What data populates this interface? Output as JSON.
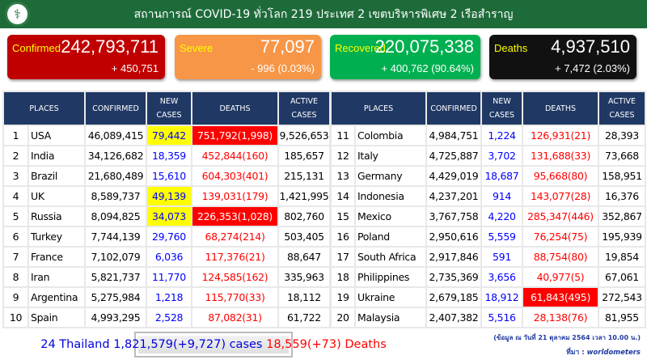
{
  "header": {
    "title": "สถานการณ์ COVID-19 ทั่วโลก 219 ประเทศ 2 เขตบริหารพิเศษ 2 เรือสำราญ",
    "logo": "department-logo"
  },
  "cards": {
    "confirmed": {
      "label": "Confirmed",
      "value": "242,793,711",
      "change": "+ 450,751",
      "color": "#c00000"
    },
    "severe": {
      "label": "Severe",
      "value": "77,097",
      "change": "- 996 (0.03%)",
      "color": "#f79646"
    },
    "recovered": {
      "label": "Recovered",
      "value": "220,075,338",
      "change": "+ 400,762 (90.64%)",
      "color": "#00b050"
    },
    "deaths": {
      "label": "Deaths",
      "value": "4,937,510",
      "change": "+ 7,472 (2.03%)",
      "color": "#111111"
    }
  },
  "table": {
    "headers": {
      "places": "PLACES",
      "confirmed": "CONFIRMED",
      "new_cases": "NEW CASES",
      "deaths": "DEATHS",
      "active_cases": "ACTIVE CASES"
    },
    "rows": [
      {
        "rank": "1",
        "place": "USA",
        "confirmed": "46,089,415",
        "new": "79,442",
        "deaths": "751,792(1,998)",
        "active": "9,526,653",
        "new_highlight": true,
        "deaths_highlight": true
      },
      {
        "rank": "2",
        "place": "India",
        "confirmed": "34,126,682",
        "new": "18,359",
        "deaths": "452,844(160)",
        "active": "185,657"
      },
      {
        "rank": "3",
        "place": "Brazil",
        "confirmed": "21,680,489",
        "new": "15,610",
        "deaths": "604,303(401)",
        "active": "215,131"
      },
      {
        "rank": "4",
        "place": "UK",
        "confirmed": "8,589,737",
        "new": "49,139",
        "deaths": "139,031(179)",
        "active": "1,421,995",
        "new_highlight": true
      },
      {
        "rank": "5",
        "place": "Russia",
        "confirmed": "8,094,825",
        "new": "34,073",
        "deaths": "226,353(1,028)",
        "active": "802,760",
        "new_highlight": true,
        "deaths_highlight": true
      },
      {
        "rank": "6",
        "place": "Turkey",
        "confirmed": "7,744,139",
        "new": "29,760",
        "deaths": "68,274(214)",
        "active": "503,405"
      },
      {
        "rank": "7",
        "place": "France",
        "confirmed": "7,102,079",
        "new": "6,036",
        "deaths": "117,376(21)",
        "active": "88,647"
      },
      {
        "rank": "8",
        "place": "Iran",
        "confirmed": "5,821,737",
        "new": "11,770",
        "deaths": "124,585(162)",
        "active": "335,963"
      },
      {
        "rank": "9",
        "place": "Argentina",
        "confirmed": "5,275,984",
        "new": "1,218",
        "deaths": "115,770(33)",
        "active": "18,112"
      },
      {
        "rank": "10",
        "place": "Spain",
        "confirmed": "4,993,295",
        "new": "2,528",
        "deaths": "87,082(31)",
        "active": "61,722"
      },
      {
        "rank": "11",
        "place": "Colombia",
        "confirmed": "4,984,751",
        "new": "1,224",
        "deaths": "126,931(21)",
        "active": "28,393"
      },
      {
        "rank": "12",
        "place": "Italy",
        "confirmed": "4,725,887",
        "new": "3,702",
        "deaths": "131,688(33)",
        "active": "73,668"
      },
      {
        "rank": "13",
        "place": "Germany",
        "confirmed": "4,429,019",
        "new": "18,687",
        "deaths": "95,668(80)",
        "active": "158,951"
      },
      {
        "rank": "14",
        "place": "Indonesia",
        "confirmed": "4,237,201",
        "new": "914",
        "deaths": "143,077(28)",
        "active": "16,376"
      },
      {
        "rank": "15",
        "place": "Mexico",
        "confirmed": "3,767,758",
        "new": "4,220",
        "deaths": "285,347(446)",
        "active": "352,867"
      },
      {
        "rank": "16",
        "place": "Poland",
        "confirmed": "2,950,616",
        "new": "5,559",
        "deaths": "76,254(75)",
        "active": "195,939"
      },
      {
        "rank": "17",
        "place": "South Africa",
        "confirmed": "2,917,846",
        "new": "591",
        "deaths": "88,754(80)",
        "active": "19,854"
      },
      {
        "rank": "18",
        "place": "Philippines",
        "confirmed": "2,735,369",
        "new": "3,656",
        "deaths": "40,977(5)",
        "active": "67,061"
      },
      {
        "rank": "19",
        "place": "Ukraine",
        "confirmed": "2,679,185",
        "new": "18,912",
        "deaths": "61,843(495)",
        "active": "272,543",
        "deaths_highlight": true
      },
      {
        "rank": "20",
        "place": "Malaysia",
        "confirmed": "2,407,382",
        "new": "5,516",
        "deaths": "28,138(76)",
        "active": "81,955"
      }
    ]
  },
  "thailand": {
    "rank_name": "24 Thailand",
    "cases": "1,821,579(+9,727) cases",
    "deaths": "18,559(+73) Deaths"
  },
  "footer": {
    "date_note": "(ข้อมูล ณ วันที่ 21 ตุลาคม 2564 เวลา 10.00 น.)",
    "source_label": "ที่มา :",
    "source": "worldometers"
  }
}
